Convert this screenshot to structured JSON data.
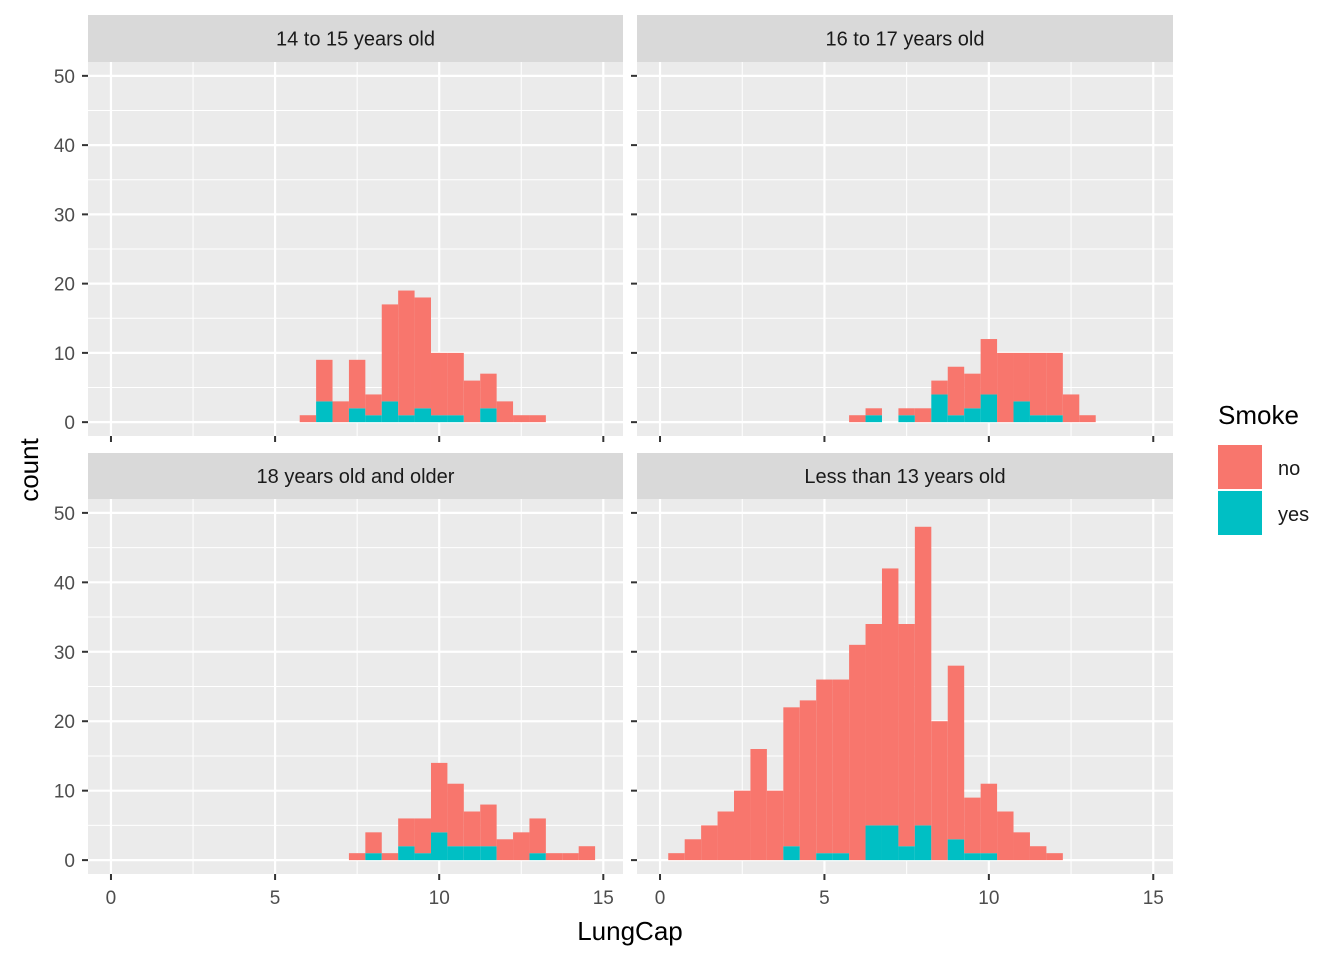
{
  "chart_data": {
    "type": "bar",
    "stacked": true,
    "facet_layout": "2x2",
    "xlabel": "LungCap",
    "ylabel": "count",
    "xlim": [
      -0.7,
      15.6
    ],
    "ylim": [
      -2,
      52
    ],
    "xticks": [
      0,
      5,
      10,
      15
    ],
    "yticks": [
      0,
      10,
      20,
      30,
      40,
      50
    ],
    "bin_width": 0.5,
    "grid": true,
    "legend": {
      "title": "Smoke",
      "position": "right",
      "entries": [
        {
          "label": "no",
          "color": "#F8766D"
        },
        {
          "label": "yes",
          "color": "#00BFC4"
        }
      ]
    },
    "colors": {
      "no": "#F8766D",
      "yes": "#00BFC4",
      "panel": "#EBEBEB",
      "strip": "#D9D9D9",
      "grid": "#FFFFFF"
    },
    "panels": [
      {
        "title": "14 to 15 years old",
        "bins_x": [
          6.0,
          6.5,
          7.0,
          7.5,
          8.0,
          8.5,
          9.0,
          9.5,
          10.0,
          10.5,
          11.0,
          11.5,
          12.0,
          12.5,
          13.0
        ],
        "series": [
          {
            "name": "no",
            "values": [
              1,
              6,
              3,
              7,
              3,
              14,
              18,
              16,
              9,
              9,
              6,
              5,
              3,
              1,
              1
            ]
          },
          {
            "name": "yes",
            "values": [
              0,
              3,
              0,
              2,
              1,
              3,
              1,
              2,
              1,
              1,
              0,
              2,
              0,
              0,
              0
            ]
          }
        ]
      },
      {
        "title": "16 to 17 years old",
        "bins_x": [
          6.0,
          6.5,
          7.0,
          7.5,
          8.0,
          8.5,
          9.0,
          9.5,
          10.0,
          10.5,
          11.0,
          11.5,
          12.0,
          12.5,
          13.0
        ],
        "series": [
          {
            "name": "no",
            "values": [
              1,
              1,
              0,
              1,
              2,
              2,
              7,
              5,
              8,
              10,
              7,
              9,
              9,
              4,
              1
            ]
          },
          {
            "name": "yes",
            "values": [
              0,
              1,
              0,
              1,
              0,
              4,
              1,
              2,
              4,
              0,
              3,
              1,
              1,
              0,
              0
            ]
          }
        ]
      },
      {
        "title": "18 years old and older",
        "bins_x": [
          7.5,
          8.0,
          8.5,
          9.0,
          9.5,
          10.0,
          10.5,
          11.0,
          11.5,
          12.0,
          12.5,
          13.0,
          13.5,
          14.0,
          14.5
        ],
        "series": [
          {
            "name": "no",
            "values": [
              1,
              3,
              1,
              4,
              5,
              10,
              9,
              5,
              6,
              3,
              4,
              5,
              1,
              1,
              2
            ]
          },
          {
            "name": "yes",
            "values": [
              0,
              1,
              0,
              2,
              1,
              4,
              2,
              2,
              2,
              0,
              0,
              1,
              0,
              0,
              0
            ]
          }
        ]
      },
      {
        "title": "Less than 13 years old",
        "bins_x": [
          0.5,
          1.0,
          1.5,
          2.0,
          2.5,
          3.0,
          3.5,
          4.0,
          4.5,
          5.0,
          5.5,
          6.0,
          6.5,
          7.0,
          7.5,
          8.0,
          8.5,
          9.0,
          9.5,
          10.0,
          10.5,
          11.0,
          11.5,
          12.0
        ],
        "series": [
          {
            "name": "no",
            "values": [
              1,
              3,
              5,
              7,
              10,
              16,
              10,
              20,
              23,
              25,
              25,
              31,
              29,
              37,
              32,
              43,
              20,
              25,
              8,
              10,
              7,
              4,
              2,
              1
            ]
          },
          {
            "name": "yes",
            "values": [
              0,
              0,
              0,
              0,
              0,
              0,
              0,
              2,
              0,
              1,
              1,
              0,
              5,
              5,
              2,
              5,
              0,
              3,
              1,
              1,
              0,
              0,
              0,
              0
            ]
          }
        ]
      }
    ]
  }
}
